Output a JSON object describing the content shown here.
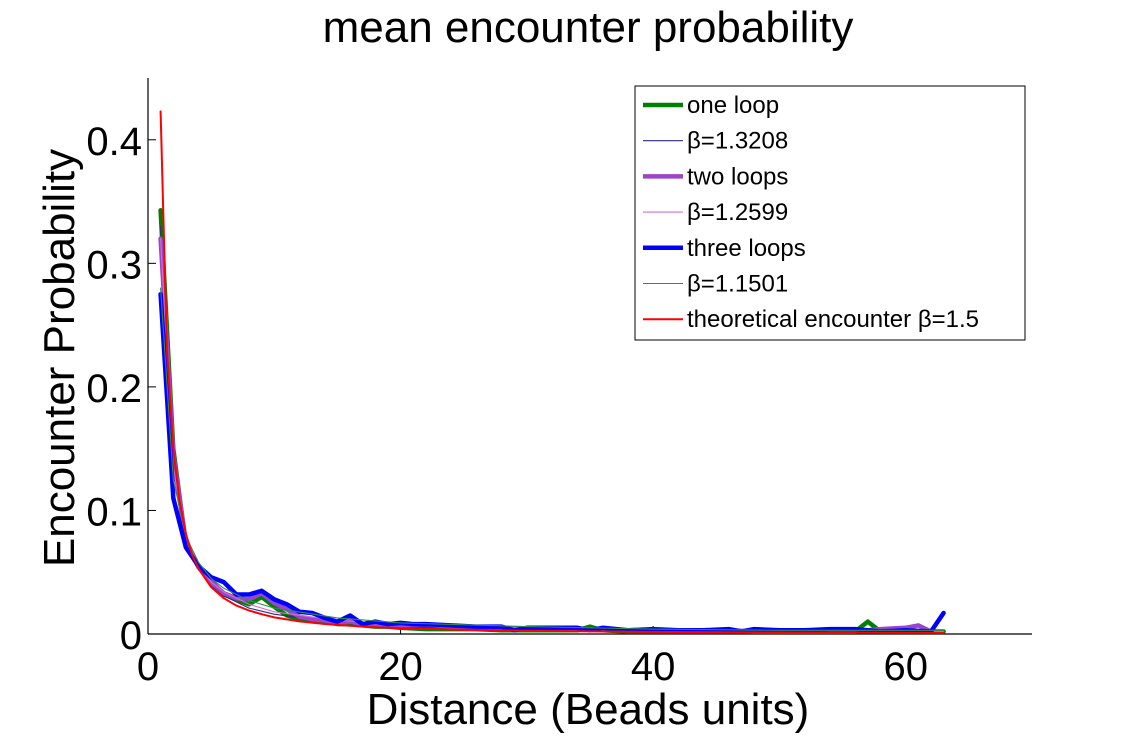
{
  "chart_data": {
    "type": "line",
    "title": "mean encounter probability",
    "xlabel": "Distance (Beads units)",
    "ylabel": "Encounter Probability",
    "xlim": [
      0,
      70
    ],
    "ylim": [
      0,
      0.45
    ],
    "xticks": [
      0,
      20,
      40,
      60
    ],
    "yticks": [
      0,
      0.1,
      0.2,
      0.3,
      0.4
    ],
    "xtick_labels": [
      "0",
      "20",
      "40",
      "60"
    ],
    "ytick_labels": [
      "0",
      "0.1",
      "0.2",
      "0.3",
      "0.4"
    ],
    "legend_position": "top-right",
    "grid": false,
    "series": [
      {
        "name": "one loop",
        "color": "#008000",
        "style": "thick",
        "x": [
          1,
          2,
          3,
          4,
          5,
          6,
          7,
          8,
          9,
          10,
          11,
          12,
          13,
          14,
          15,
          16,
          17,
          18,
          19,
          20,
          22,
          24,
          26,
          28,
          30,
          32,
          34,
          35,
          36,
          38,
          40,
          42,
          44,
          46,
          48,
          50,
          52,
          54,
          56,
          57,
          58,
          60,
          62,
          63
        ],
        "y": [
          0.343,
          0.15,
          0.072,
          0.055,
          0.043,
          0.032,
          0.028,
          0.024,
          0.03,
          0.022,
          0.015,
          0.012,
          0.011,
          0.01,
          0.008,
          0.008,
          0.007,
          0.006,
          0.006,
          0.005,
          0.004,
          0.004,
          0.004,
          0.003,
          0.003,
          0.003,
          0.003,
          0.006,
          0.003,
          0.002,
          0.002,
          0.002,
          0.002,
          0.002,
          0.002,
          0.002,
          0.002,
          0.002,
          0.002,
          0.01,
          0.002,
          0.002,
          0.002,
          0.002
        ]
      },
      {
        "name": "β=1.3208",
        "color": "#2a2a8a",
        "style": "thin",
        "x": [
          1,
          2,
          3,
          4,
          5,
          6,
          8,
          10,
          15,
          20,
          30,
          40,
          50,
          63
        ],
        "y": [
          0.33,
          0.132,
          0.077,
          0.052,
          0.039,
          0.031,
          0.021,
          0.016,
          0.009,
          0.006,
          0.004,
          0.003,
          0.002,
          0.002
        ]
      },
      {
        "name": "two loops",
        "color": "#9b45c9",
        "style": "thick",
        "x": [
          1,
          2,
          3,
          4,
          5,
          6,
          7,
          8,
          9,
          10,
          11,
          12,
          13,
          14,
          15,
          16,
          17,
          18,
          19,
          20,
          22,
          24,
          26,
          28,
          30,
          32,
          34,
          36,
          38,
          40,
          42,
          44,
          46,
          48,
          50,
          52,
          54,
          56,
          58,
          60,
          61,
          62
        ],
        "y": [
          0.32,
          0.145,
          0.074,
          0.054,
          0.042,
          0.033,
          0.029,
          0.028,
          0.033,
          0.025,
          0.02,
          0.014,
          0.012,
          0.011,
          0.009,
          0.01,
          0.008,
          0.008,
          0.007,
          0.007,
          0.008,
          0.006,
          0.005,
          0.005,
          0.004,
          0.004,
          0.004,
          0.003,
          0.003,
          0.003,
          0.003,
          0.003,
          0.003,
          0.002,
          0.002,
          0.002,
          0.002,
          0.002,
          0.004,
          0.005,
          0.007,
          0.002
        ]
      },
      {
        "name": "β=1.2599",
        "color": "#d070d0",
        "style": "thin",
        "x": [
          1,
          2,
          3,
          4,
          5,
          6,
          8,
          10,
          15,
          20,
          30,
          40,
          50,
          63
        ],
        "y": [
          0.32,
          0.134,
          0.08,
          0.056,
          0.042,
          0.034,
          0.024,
          0.018,
          0.011,
          0.008,
          0.005,
          0.003,
          0.003,
          0.002
        ]
      },
      {
        "name": "three loops",
        "color": "#0000ff",
        "style": "thick",
        "x": [
          1,
          2,
          3,
          4,
          5,
          6,
          7,
          8,
          9,
          10,
          11,
          12,
          13,
          14,
          15,
          16,
          17,
          18,
          19,
          20,
          21,
          22,
          24,
          26,
          28,
          29,
          30,
          32,
          34,
          35,
          36,
          38,
          40,
          42,
          44,
          46,
          47,
          48,
          50,
          52,
          54,
          56,
          58,
          60,
          62,
          63
        ],
        "y": [
          0.275,
          0.11,
          0.07,
          0.055,
          0.046,
          0.042,
          0.032,
          0.032,
          0.035,
          0.028,
          0.024,
          0.018,
          0.017,
          0.013,
          0.01,
          0.015,
          0.008,
          0.01,
          0.008,
          0.009,
          0.008,
          0.008,
          0.007,
          0.006,
          0.006,
          0.003,
          0.005,
          0.005,
          0.005,
          0.003,
          0.005,
          0.003,
          0.004,
          0.003,
          0.003,
          0.004,
          0.002,
          0.004,
          0.003,
          0.003,
          0.004,
          0.004,
          0.002,
          0.003,
          0.002,
          0.017
        ]
      },
      {
        "name": "β=1.1501",
        "color": "#2e8b57",
        "style": "thin",
        "x": [
          1,
          2,
          3,
          4,
          5,
          6,
          8,
          10,
          15,
          20,
          30,
          40,
          50,
          63
        ],
        "y": [
          0.28,
          0.125,
          0.079,
          0.058,
          0.045,
          0.037,
          0.027,
          0.021,
          0.013,
          0.009,
          0.006,
          0.004,
          0.003,
          0.003
        ]
      },
      {
        "name": "theoretical encounter β=1.5",
        "color": "#ff0000",
        "style": "medium",
        "x": [
          1,
          1.5,
          2,
          2.5,
          3,
          3.5,
          4,
          5,
          6,
          7,
          8,
          9,
          10,
          12,
          14,
          16,
          18,
          20,
          25,
          30,
          35,
          40,
          45,
          50,
          55,
          60,
          63
        ],
        "y": [
          0.423,
          0.23,
          0.15,
          0.107,
          0.081,
          0.064,
          0.053,
          0.038,
          0.029,
          0.023,
          0.019,
          0.016,
          0.0134,
          0.0102,
          0.0081,
          0.0066,
          0.0055,
          0.0047,
          0.0034,
          0.0026,
          0.0021,
          0.0017,
          0.0014,
          0.0012,
          0.0011,
          0.001,
          0.0009
        ]
      }
    ]
  }
}
